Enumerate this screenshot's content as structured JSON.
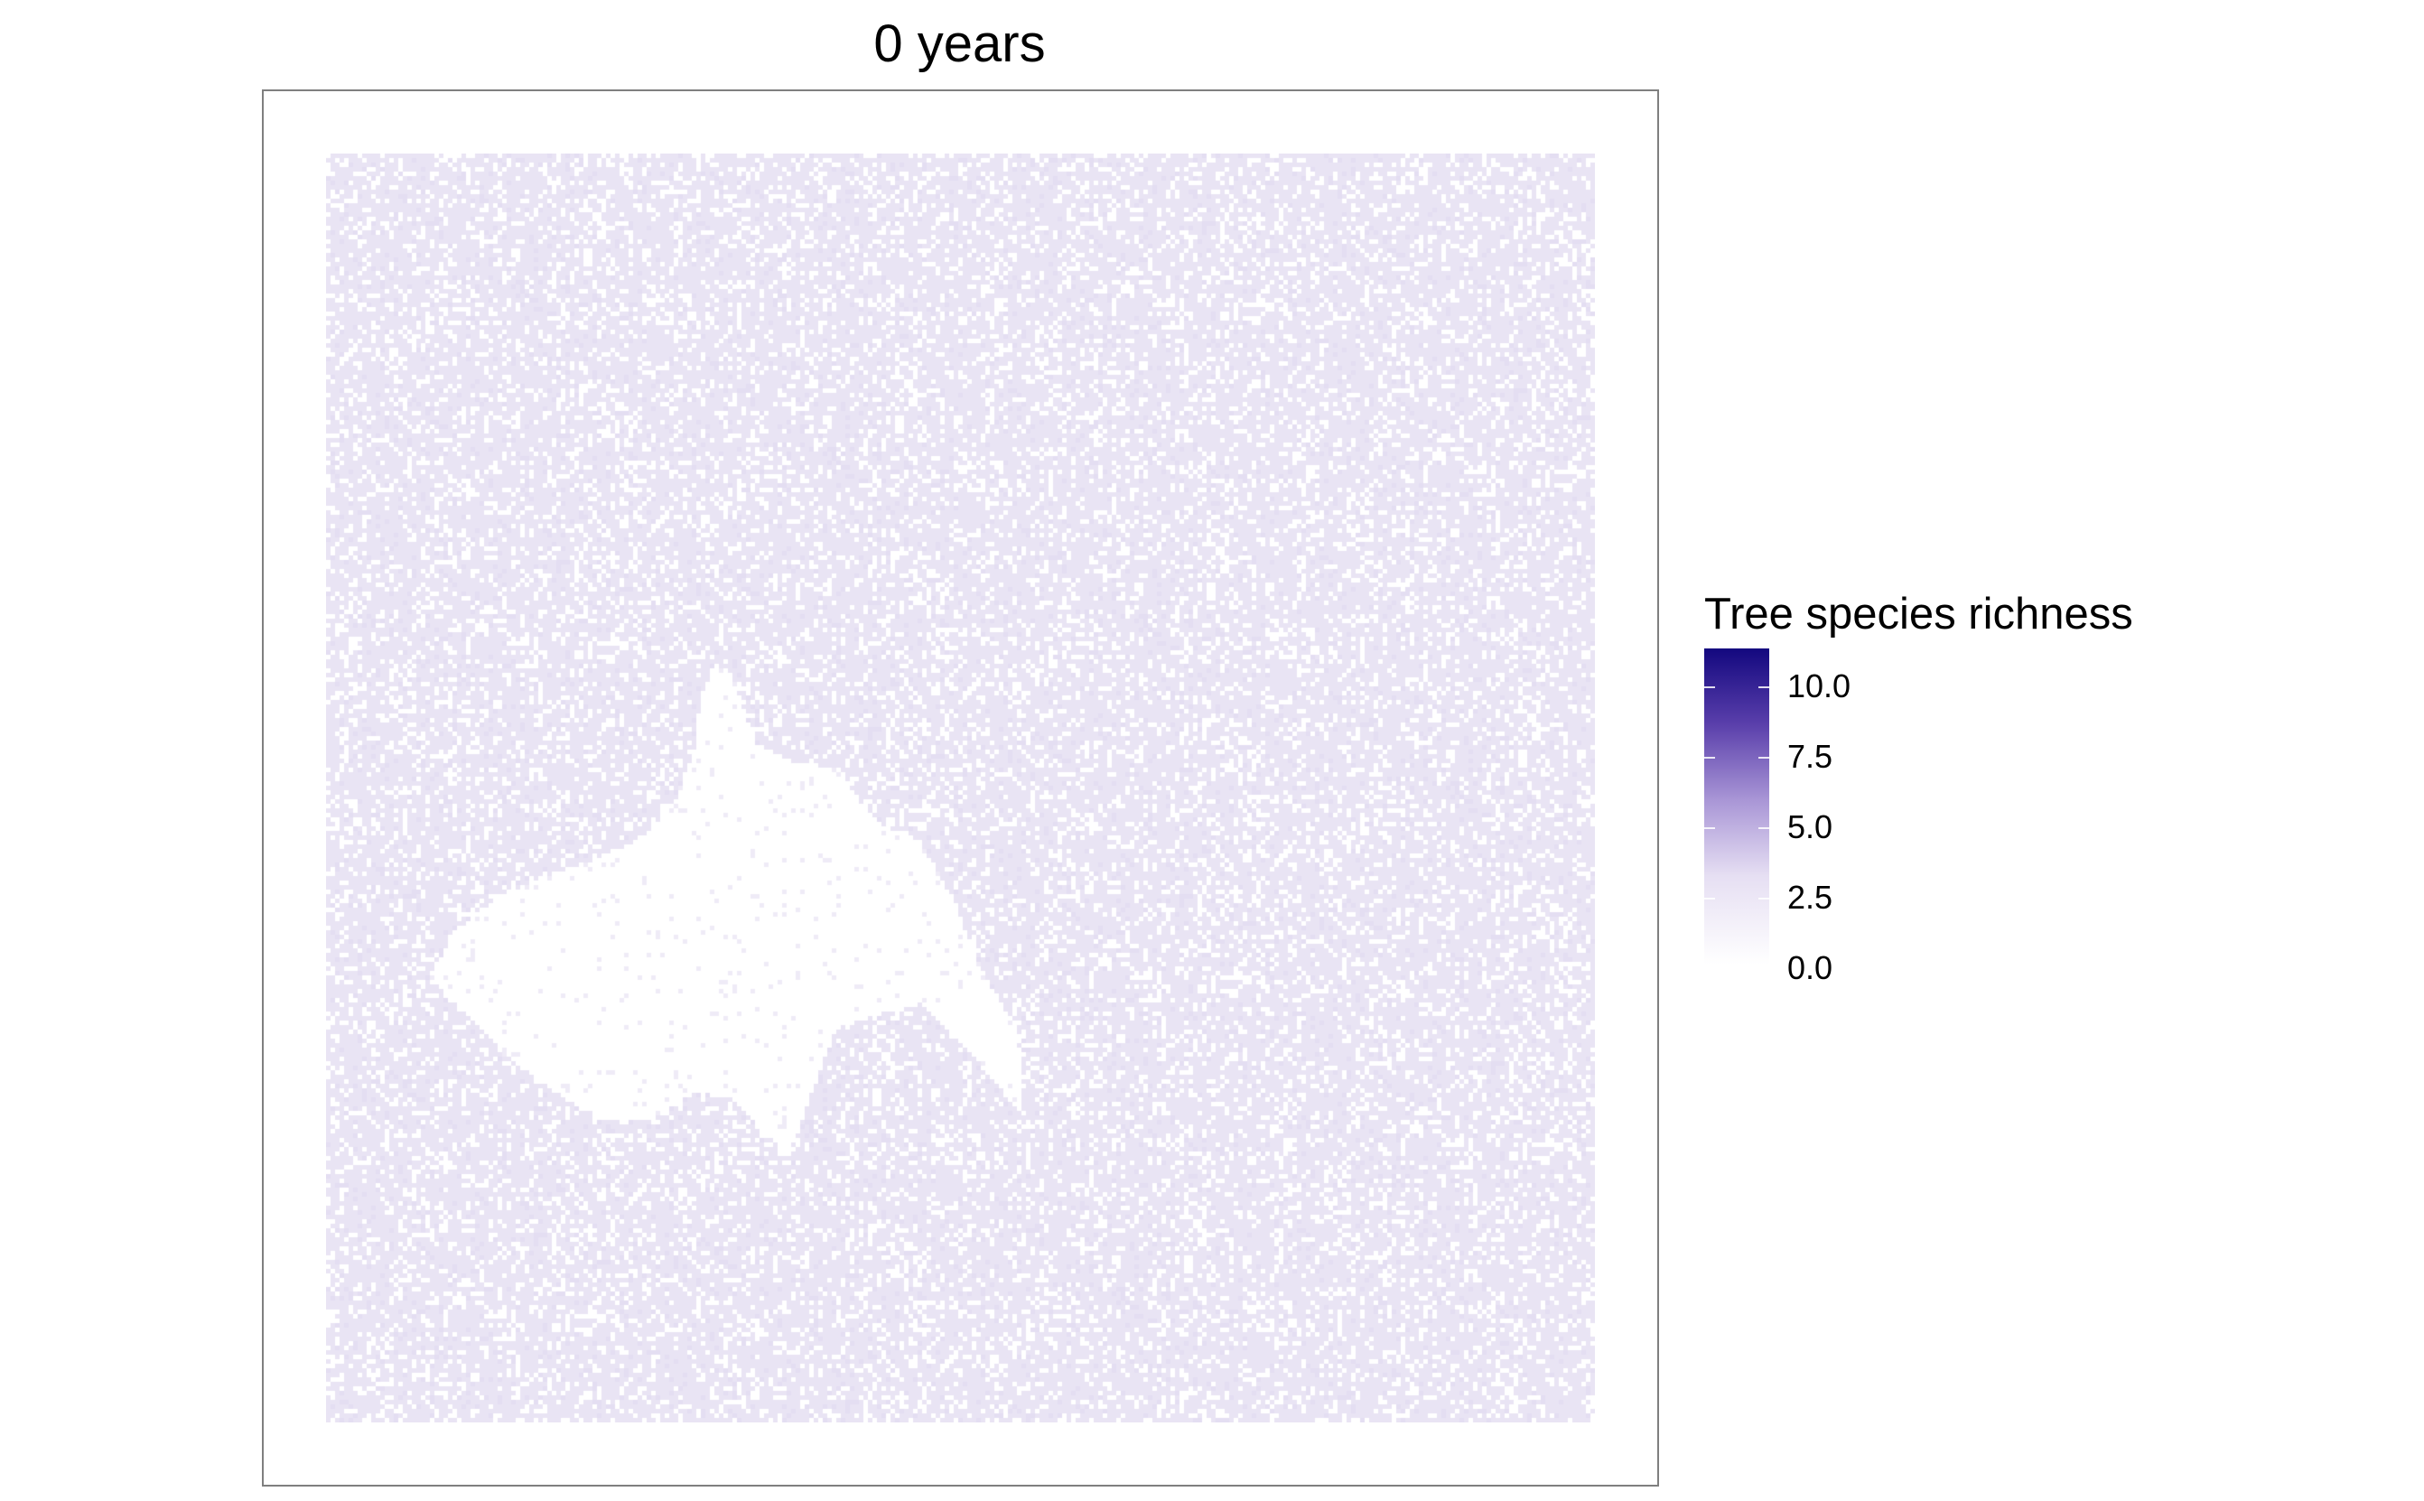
{
  "title": "0 years",
  "legend": {
    "title": "Tree species richness",
    "breaks": [
      "10.0",
      "7.5",
      "5.0",
      "2.5",
      "0.0"
    ]
  },
  "colors": {
    "background": "#ffffff",
    "frame": "#7f7f7f",
    "low": "#ffffff",
    "mid_light": "#e6dff3",
    "mid": "#a996d6",
    "high": "#13087f"
  },
  "map": {
    "type": "raster",
    "value_range": [
      0,
      11
    ],
    "background_value": 0.5,
    "empty_value": 0
  }
}
